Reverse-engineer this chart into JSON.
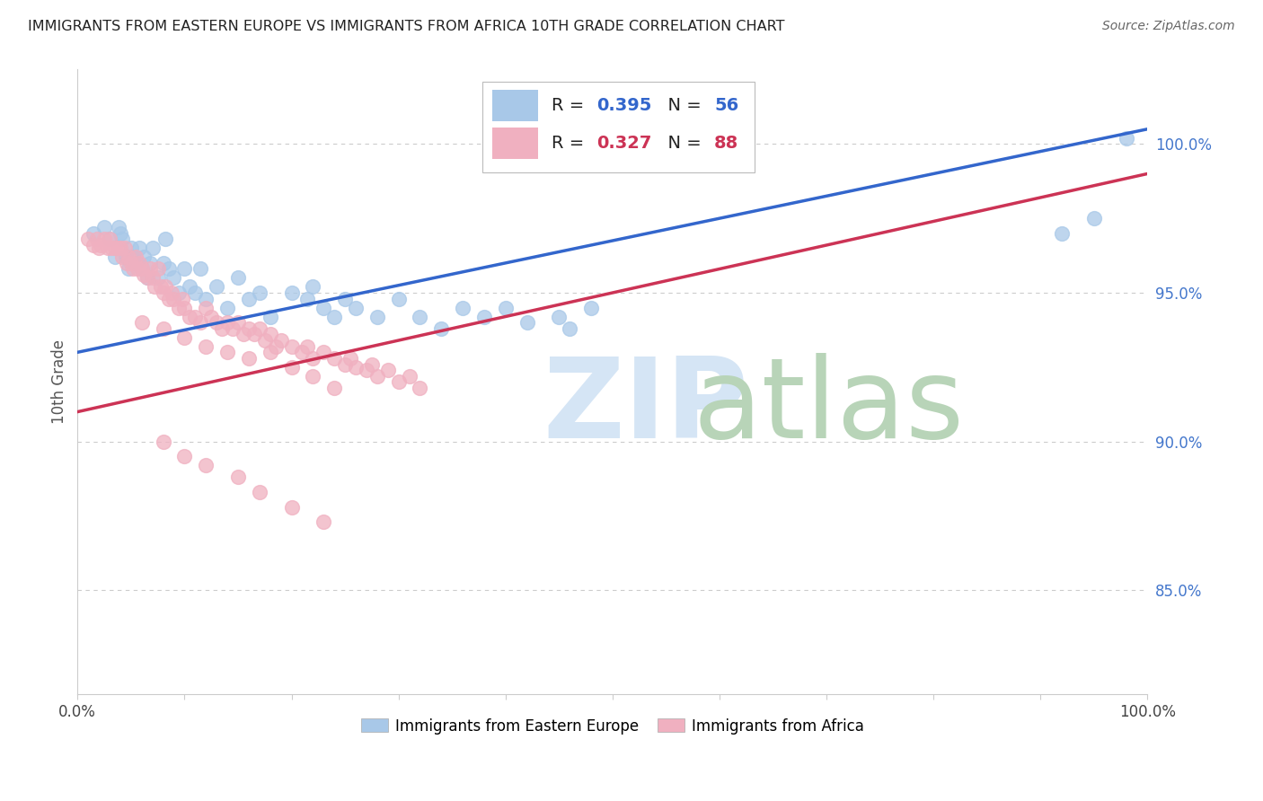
{
  "title": "IMMIGRANTS FROM EASTERN EUROPE VS IMMIGRANTS FROM AFRICA 10TH GRADE CORRELATION CHART",
  "source": "Source: ZipAtlas.com",
  "ylabel": "10th Grade",
  "legend_blue_R": "0.395",
  "legend_blue_N": "56",
  "legend_pink_R": "0.327",
  "legend_pink_N": "88",
  "legend_label_blue": "Immigrants from Eastern Europe",
  "legend_label_pink": "Immigrants from Africa",
  "blue_color": "#a8c8e8",
  "pink_color": "#f0b0c0",
  "blue_line_color": "#3366cc",
  "pink_line_color": "#cc3355",
  "blue_line_y0": 0.93,
  "blue_line_y1": 1.005,
  "pink_line_y0": 0.91,
  "pink_line_y1": 0.99,
  "watermark_zip_color": "#d5e5f5",
  "watermark_atlas_color": "#b8d4b8",
  "background_color": "#ffffff",
  "grid_color": "#cccccc",
  "xlim": [
    0.0,
    1.0
  ],
  "ylim": [
    0.815,
    1.025
  ],
  "yticks": [
    0.85,
    0.9,
    0.95,
    1.0
  ],
  "ytick_labels": [
    "85.0%",
    "90.0%",
    "95.0%",
    "100.0%"
  ],
  "xtick_labels": [
    "0.0%",
    "",
    "",
    "",
    "",
    "",
    "",
    "",
    "",
    "",
    "100.0%"
  ],
  "blue_x": [
    0.015,
    0.025,
    0.03,
    0.035,
    0.038,
    0.04,
    0.042,
    0.045,
    0.048,
    0.05,
    0.052,
    0.055,
    0.058,
    0.06,
    0.062,
    0.065,
    0.068,
    0.07,
    0.075,
    0.08,
    0.082,
    0.085,
    0.09,
    0.095,
    0.1,
    0.105,
    0.11,
    0.115,
    0.12,
    0.13,
    0.14,
    0.15,
    0.16,
    0.17,
    0.18,
    0.2,
    0.215,
    0.22,
    0.23,
    0.24,
    0.25,
    0.26,
    0.28,
    0.3,
    0.32,
    0.34,
    0.36,
    0.38,
    0.4,
    0.42,
    0.45,
    0.46,
    0.48,
    0.92,
    0.95,
    0.98
  ],
  "blue_y": [
    0.97,
    0.972,
    0.968,
    0.962,
    0.972,
    0.97,
    0.968,
    0.962,
    0.958,
    0.965,
    0.962,
    0.96,
    0.965,
    0.958,
    0.962,
    0.955,
    0.96,
    0.965,
    0.955,
    0.96,
    0.968,
    0.958,
    0.955,
    0.95,
    0.958,
    0.952,
    0.95,
    0.958,
    0.948,
    0.952,
    0.945,
    0.955,
    0.948,
    0.95,
    0.942,
    0.95,
    0.948,
    0.952,
    0.945,
    0.942,
    0.948,
    0.945,
    0.942,
    0.948,
    0.942,
    0.938,
    0.945,
    0.942,
    0.945,
    0.94,
    0.942,
    0.938,
    0.945,
    0.97,
    0.975,
    1.002
  ],
  "pink_x": [
    0.01,
    0.015,
    0.018,
    0.02,
    0.022,
    0.025,
    0.028,
    0.03,
    0.032,
    0.035,
    0.038,
    0.04,
    0.042,
    0.044,
    0.046,
    0.048,
    0.05,
    0.052,
    0.054,
    0.056,
    0.058,
    0.06,
    0.062,
    0.065,
    0.068,
    0.07,
    0.072,
    0.075,
    0.078,
    0.08,
    0.082,
    0.085,
    0.088,
    0.09,
    0.095,
    0.098,
    0.1,
    0.105,
    0.11,
    0.115,
    0.12,
    0.125,
    0.13,
    0.135,
    0.14,
    0.145,
    0.15,
    0.155,
    0.16,
    0.165,
    0.17,
    0.175,
    0.18,
    0.185,
    0.19,
    0.2,
    0.21,
    0.215,
    0.22,
    0.23,
    0.24,
    0.25,
    0.255,
    0.26,
    0.27,
    0.275,
    0.28,
    0.29,
    0.3,
    0.31,
    0.32,
    0.06,
    0.08,
    0.1,
    0.12,
    0.14,
    0.16,
    0.18,
    0.2,
    0.22,
    0.24,
    0.08,
    0.1,
    0.12,
    0.15,
    0.17,
    0.2,
    0.23
  ],
  "pink_y": [
    0.968,
    0.966,
    0.968,
    0.965,
    0.966,
    0.968,
    0.965,
    0.968,
    0.965,
    0.965,
    0.965,
    0.965,
    0.962,
    0.965,
    0.96,
    0.962,
    0.96,
    0.958,
    0.962,
    0.958,
    0.96,
    0.958,
    0.956,
    0.955,
    0.958,
    0.955,
    0.952,
    0.958,
    0.952,
    0.95,
    0.952,
    0.948,
    0.95,
    0.948,
    0.945,
    0.948,
    0.945,
    0.942,
    0.942,
    0.94,
    0.945,
    0.942,
    0.94,
    0.938,
    0.94,
    0.938,
    0.94,
    0.936,
    0.938,
    0.936,
    0.938,
    0.934,
    0.936,
    0.932,
    0.934,
    0.932,
    0.93,
    0.932,
    0.928,
    0.93,
    0.928,
    0.926,
    0.928,
    0.925,
    0.924,
    0.926,
    0.922,
    0.924,
    0.92,
    0.922,
    0.918,
    0.94,
    0.938,
    0.935,
    0.932,
    0.93,
    0.928,
    0.93,
    0.925,
    0.922,
    0.918,
    0.9,
    0.895,
    0.892,
    0.888,
    0.883,
    0.878,
    0.873
  ]
}
